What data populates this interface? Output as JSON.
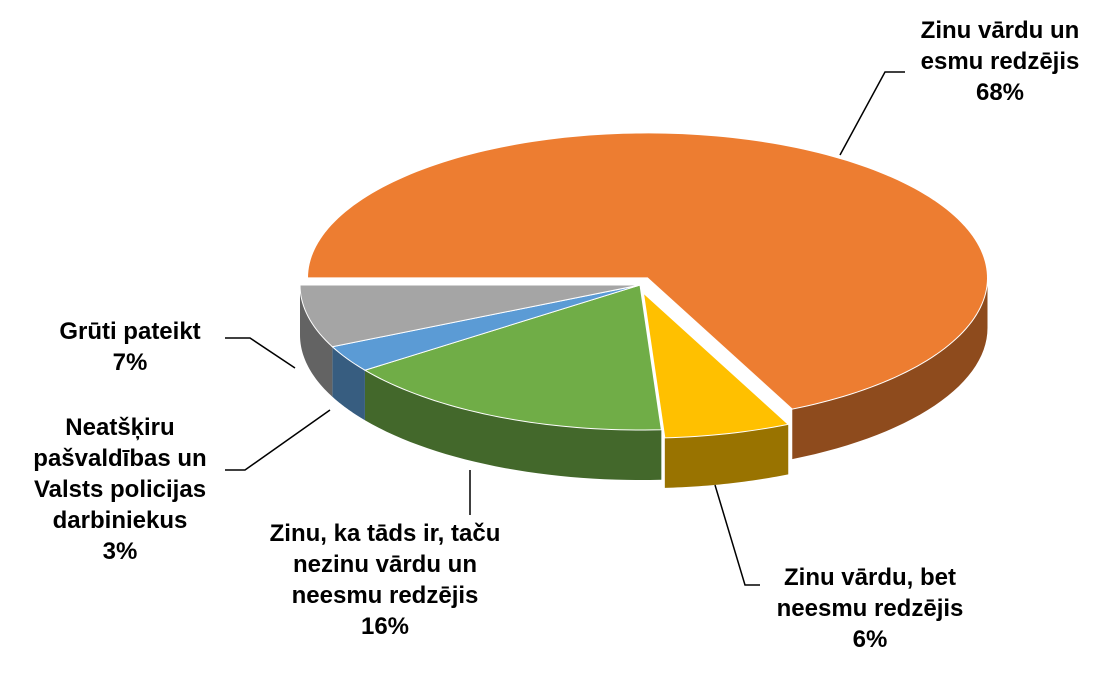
{
  "chart_data": {
    "type": "pie",
    "categories": [
      "Zinu vārdu un esmu redzējis",
      "Zinu vārdu, bet neesmu redzējis",
      "Zinu, ka tāds ir, taču nezinu vārdu un neesmu redzējis",
      "Neatšķiru pašvaldības un Valsts policijas darbiniekus",
      "Grūti pateikt"
    ],
    "values": [
      68,
      6,
      16,
      3,
      7
    ],
    "value_labels": [
      "68%",
      "6%",
      "16%",
      "3%",
      "7%"
    ],
    "colors": [
      "#ED7D31",
      "#FFC000",
      "#70AD47",
      "#5B9BD5",
      "#A5A5A5"
    ]
  }
}
